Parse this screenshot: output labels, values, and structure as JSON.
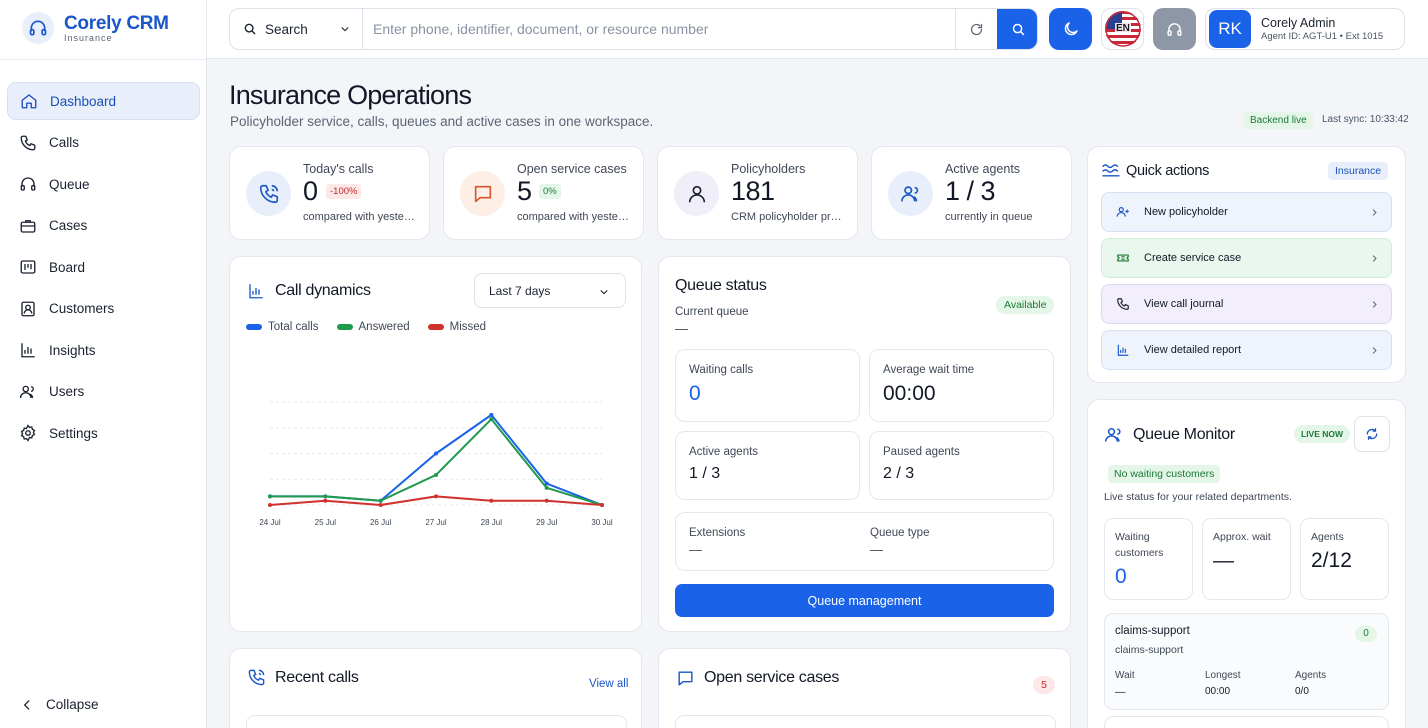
{
  "app": {
    "name": "Corely CRM",
    "subtitle": "Insurance"
  },
  "sidebar": {
    "items": [
      {
        "label": "Dashboard",
        "icon": "home-icon",
        "active": true
      },
      {
        "label": "Calls",
        "icon": "phone-icon"
      },
      {
        "label": "Queue",
        "icon": "headset-icon"
      },
      {
        "label": "Cases",
        "icon": "briefcase-icon"
      },
      {
        "label": "Board",
        "icon": "board-icon"
      },
      {
        "label": "Customers",
        "icon": "contact-icon"
      },
      {
        "label": "Insights",
        "icon": "bar-chart-icon"
      },
      {
        "label": "Users",
        "icon": "users-icon"
      },
      {
        "label": "Settings",
        "icon": "gear-icon"
      }
    ],
    "collapse_label": "Collapse"
  },
  "topbar": {
    "search_type": "Search",
    "search_placeholder": "Enter phone, identifier, document, or resource number",
    "language": "EN",
    "user": {
      "initials": "RK",
      "name": "Corely Admin",
      "details": "Agent ID: AGT-U1 • Ext 1015"
    },
    "colors": {
      "primary": "#1a62e8"
    }
  },
  "header": {
    "title": "Insurance Operations",
    "subtitle": "Policyholder service, calls, queues and active cases in one workspace.",
    "status_badge": "Backend live",
    "last_sync": "Last sync: 10:33:42"
  },
  "stats": [
    {
      "label": "Today's calls",
      "value": "0",
      "delta": "-100%",
      "note": "compared with yesterday"
    },
    {
      "label": "Open service cases",
      "value": "5",
      "delta": "0%",
      "note": "compared with yesterday"
    },
    {
      "label": "Policyholders",
      "value": "181",
      "note": "CRM policyholder profiles"
    },
    {
      "label": "Active agents",
      "value": "1 / 3",
      "note": "currently in queue"
    }
  ],
  "call_dynamics": {
    "title": "Call dynamics",
    "range": "Last 7 days"
  },
  "chart_data": {
    "type": "line",
    "x": [
      "24 Jul",
      "25 Jul",
      "26 Jul",
      "27 Jul",
      "28 Jul",
      "29 Jul",
      "30 Jul"
    ],
    "ylim": [
      0,
      12
    ],
    "grid": true,
    "legend": "top-left",
    "series": [
      {
        "name": "Total calls",
        "color": "#1a62e8",
        "values": [
          1,
          1,
          0.5,
          6,
          10.5,
          2.5,
          0
        ]
      },
      {
        "name": "Answered",
        "color": "#1f9a4d",
        "values": [
          1,
          1,
          0.5,
          3.5,
          10,
          2,
          0
        ]
      },
      {
        "name": "Missed",
        "color": "#d0312d",
        "values": [
          0,
          0.5,
          0,
          1,
          0.5,
          0.5,
          0
        ]
      }
    ]
  },
  "queue_status": {
    "title": "Queue status",
    "current_queue_label": "Current queue",
    "current_queue_value": "—",
    "badge": "Available",
    "waiting_calls_label": "Waiting calls",
    "waiting_calls_value": "0",
    "avg_wait_label": "Average wait time",
    "avg_wait_value": "00:00",
    "active_agents_label": "Active agents",
    "active_agents_value": "1 / 3",
    "paused_agents_label": "Paused agents",
    "paused_agents_value": "2 / 3",
    "extensions_label": "Extensions",
    "extensions_value": "—",
    "queue_type_label": "Queue type",
    "queue_type_value": "—",
    "manage_button": "Queue management"
  },
  "quick_actions": {
    "title": "Quick actions",
    "badge": "Insurance",
    "items": [
      {
        "label": "New policyholder",
        "bg": "#eef3fc",
        "border": "#d6e0f3"
      },
      {
        "label": "Create service case",
        "bg": "#eaf7ee",
        "border": "#cdeed6"
      },
      {
        "label": "View call journal",
        "bg": "#f3eefb",
        "border": "#e2d7f4"
      },
      {
        "label": "View detailed report",
        "bg": "#eef3fc",
        "border": "#d6e0f3"
      }
    ]
  },
  "queue_monitor": {
    "title": "Queue Monitor",
    "live_badge": "LIVE NOW",
    "status_badge": "No waiting customers",
    "description": "Live status for your related departments.",
    "waiting_label_1": "Waiting",
    "waiting_label_2": "customers",
    "waiting_value": "0",
    "approx_wait_label": "Approx. wait",
    "approx_wait_value": "—",
    "agents_label": "Agents",
    "agents_value": "2/12",
    "department": {
      "name": "claims-support",
      "sub": "claims-support",
      "count": "0",
      "wait_label": "Wait",
      "wait_value": "—",
      "longest_label": "Longest",
      "longest_value": "00:00",
      "agents_label": "Agents",
      "agents_value": "0/0"
    }
  },
  "recent_calls": {
    "title": "Recent calls",
    "view_all": "View all"
  },
  "open_cases": {
    "title": "Open service cases",
    "count": "5"
  }
}
